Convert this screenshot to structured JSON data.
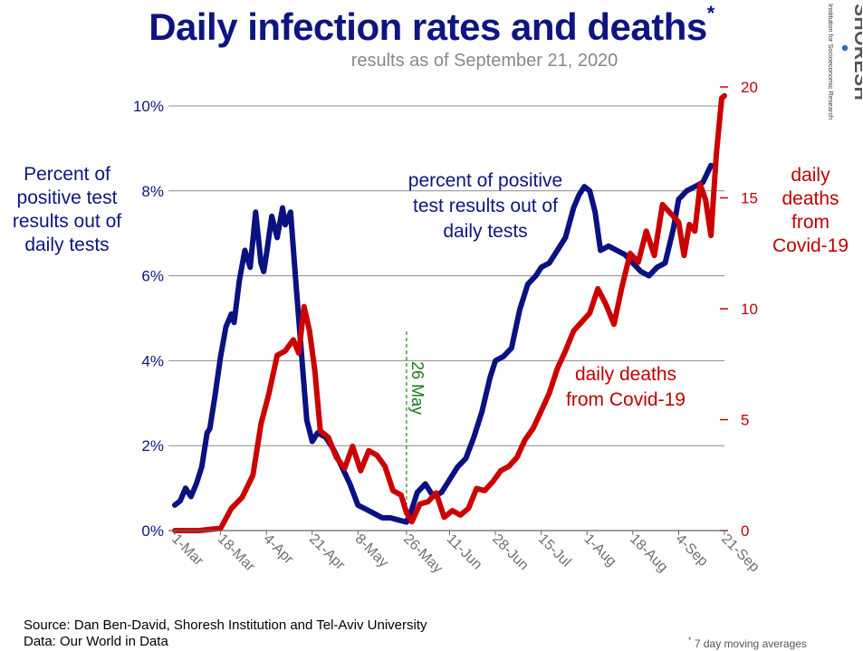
{
  "title": "Daily infection rates and deaths",
  "title_marker": "*",
  "subtitle": "results as of September 21, 2020",
  "left_axis_label": [
    "Percent of",
    "positive test",
    "results out of",
    "daily tests"
  ],
  "right_axis_label": [
    "daily",
    "deaths",
    "from",
    "Covid-19"
  ],
  "annotations": {
    "blue_series": [
      "percent of positive",
      "test results out of",
      "daily tests"
    ],
    "red_series": [
      "daily deaths",
      "from Covid-19"
    ],
    "marker_line": "26 May"
  },
  "logo": {
    "name": "SHORESH",
    "tagline": "Institution for Socioeconomic Research"
  },
  "source": {
    "line1": "Source: Dan Ben-David, Shoresh Institution and Tel-Aviv University",
    "line2": "Data: Our World in Data"
  },
  "footnote": {
    "marker": "*",
    "text": "7 day moving averages"
  },
  "colors": {
    "title": "#0d1580",
    "positivity_series": "#0a1180",
    "deaths_series": "#cc0000",
    "marker_line": "#1a8a1a",
    "gridline": "#8c8c8c"
  },
  "chart_data": {
    "type": "line",
    "x_tick_labels": [
      "1-Mar",
      "18-Mar",
      "4-Apr",
      "21-Apr",
      "8-May",
      "26-May",
      "11-Jun",
      "28-Jun",
      "15-Jul",
      "1-Aug",
      "18-Aug",
      "4-Sep",
      "21-Sep"
    ],
    "x_tick_dates": [
      "2020-03-01",
      "2020-03-18",
      "2020-04-04",
      "2020-04-21",
      "2020-05-08",
      "2020-05-26",
      "2020-06-11",
      "2020-06-28",
      "2020-07-15",
      "2020-08-01",
      "2020-08-18",
      "2020-09-04",
      "2020-09-21"
    ],
    "x_range": [
      "2020-03-01",
      "2020-09-21"
    ],
    "left_axis": {
      "ticks": [
        "0%",
        "2%",
        "4%",
        "6%",
        "8%",
        "10%"
      ],
      "tick_values": [
        0,
        2,
        4,
        6,
        8,
        10
      ],
      "ylim": [
        0,
        10
      ]
    },
    "right_axis": {
      "ticks": [
        "0",
        "5",
        "10",
        "15",
        "20"
      ],
      "tick_values": [
        0,
        5,
        10,
        15,
        20
      ],
      "ylim": [
        0,
        20
      ]
    },
    "grid": true,
    "vertical_marker": {
      "date": "2020-05-26",
      "label": "26 May",
      "style": "dashed"
    },
    "series": [
      {
        "axis": "left",
        "x": [
          "2020-03-01",
          "2020-03-03",
          "2020-03-05",
          "2020-03-07",
          "2020-03-09",
          "2020-03-11",
          "2020-03-13",
          "2020-03-14",
          "2020-03-16",
          "2020-03-18",
          "2020-03-20",
          "2020-03-22",
          "2020-03-23",
          "2020-03-25",
          "2020-03-27",
          "2020-03-29",
          "2020-03-31",
          "2020-04-02",
          "2020-04-03",
          "2020-04-04",
          "2020-04-06",
          "2020-04-08",
          "2020-04-10",
          "2020-04-11",
          "2020-04-13",
          "2020-04-15",
          "2020-04-17",
          "2020-04-19",
          "2020-04-21",
          "2020-04-23",
          "2020-04-26",
          "2020-04-29",
          "2020-05-02",
          "2020-05-05",
          "2020-05-08",
          "2020-05-11",
          "2020-05-14",
          "2020-05-17",
          "2020-05-20",
          "2020-05-23",
          "2020-05-26",
          "2020-05-28",
          "2020-05-30",
          "2020-06-02",
          "2020-06-05",
          "2020-06-08",
          "2020-06-11",
          "2020-06-14",
          "2020-06-17",
          "2020-06-20",
          "2020-06-23",
          "2020-06-26",
          "2020-06-28",
          "2020-07-01",
          "2020-07-04",
          "2020-07-07",
          "2020-07-10",
          "2020-07-13",
          "2020-07-15",
          "2020-07-18",
          "2020-07-21",
          "2020-07-24",
          "2020-07-27",
          "2020-07-29",
          "2020-07-31",
          "2020-08-02",
          "2020-08-04",
          "2020-08-06",
          "2020-08-09",
          "2020-08-12",
          "2020-08-15",
          "2020-08-18",
          "2020-08-21",
          "2020-08-24",
          "2020-08-27",
          "2020-08-30",
          "2020-09-02",
          "2020-09-04",
          "2020-09-07",
          "2020-09-10",
          "2020-09-13",
          "2020-09-16"
        ],
        "y": [
          0.6,
          0.7,
          1.0,
          0.8,
          1.1,
          1.5,
          2.3,
          2.4,
          3.2,
          4.1,
          4.8,
          5.1,
          4.9,
          5.9,
          6.6,
          6.2,
          7.5,
          6.3,
          6.1,
          6.5,
          7.4,
          6.9,
          7.6,
          7.2,
          7.5,
          5.8,
          4.2,
          2.6,
          2.1,
          2.3,
          2.2,
          1.9,
          1.5,
          1.1,
          0.6,
          0.5,
          0.4,
          0.3,
          0.3,
          0.25,
          0.2,
          0.5,
          0.9,
          1.1,
          0.8,
          0.9,
          1.2,
          1.5,
          1.7,
          2.2,
          2.8,
          3.6,
          4.0,
          4.1,
          4.3,
          5.2,
          5.8,
          6.0,
          6.2,
          6.3,
          6.6,
          6.9,
          7.6,
          7.9,
          8.1,
          8.0,
          7.5,
          6.6,
          6.7,
          6.6,
          6.5,
          6.3,
          6.1,
          6.0,
          6.2,
          6.3,
          7.1,
          7.8,
          8.0,
          8.1,
          8.2,
          8.6
        ]
      },
      {
        "axis": "right",
        "x": [
          "2020-03-01",
          "2020-03-10",
          "2020-03-18",
          "2020-03-22",
          "2020-03-26",
          "2020-03-30",
          "2020-04-02",
          "2020-04-05",
          "2020-04-08",
          "2020-04-11",
          "2020-04-14",
          "2020-04-16",
          "2020-04-18",
          "2020-04-20",
          "2020-04-22",
          "2020-04-24",
          "2020-04-27",
          "2020-04-30",
          "2020-05-03",
          "2020-05-06",
          "2020-05-09",
          "2020-05-12",
          "2020-05-15",
          "2020-05-18",
          "2020-05-21",
          "2020-05-24",
          "2020-05-26",
          "2020-05-28",
          "2020-05-31",
          "2020-06-03",
          "2020-06-06",
          "2020-06-09",
          "2020-06-12",
          "2020-06-15",
          "2020-06-18",
          "2020-06-21",
          "2020-06-24",
          "2020-06-27",
          "2020-06-30",
          "2020-07-03",
          "2020-07-06",
          "2020-07-09",
          "2020-07-12",
          "2020-07-15",
          "2020-07-18",
          "2020-07-21",
          "2020-07-24",
          "2020-07-27",
          "2020-07-30",
          "2020-08-02",
          "2020-08-05",
          "2020-08-08",
          "2020-08-11",
          "2020-08-14",
          "2020-08-17",
          "2020-08-20",
          "2020-08-23",
          "2020-08-26",
          "2020-08-29",
          "2020-09-01",
          "2020-09-04",
          "2020-09-06",
          "2020-09-08",
          "2020-09-10",
          "2020-09-12",
          "2020-09-14",
          "2020-09-16",
          "2020-09-18",
          "2020-09-20",
          "2020-09-21"
        ],
        "y": [
          0,
          0,
          0.1,
          1.0,
          1.5,
          2.5,
          4.8,
          6.2,
          7.9,
          8.1,
          8.6,
          8.0,
          10.1,
          9.0,
          7.2,
          4.5,
          4.2,
          3.3,
          2.8,
          3.8,
          2.7,
          3.6,
          3.4,
          2.9,
          1.8,
          1.6,
          0.8,
          0.4,
          1.2,
          1.3,
          1.7,
          0.6,
          0.9,
          0.7,
          1.0,
          1.9,
          1.8,
          2.2,
          2.7,
          2.9,
          3.3,
          4.1,
          4.6,
          5.4,
          6.2,
          7.3,
          8.1,
          9.0,
          9.4,
          9.8,
          10.9,
          10.2,
          9.3,
          11.0,
          12.5,
          12.1,
          13.5,
          12.4,
          14.7,
          14.3,
          13.9,
          12.4,
          13.8,
          13.5,
          15.6,
          14.9,
          13.3,
          17.0,
          19.5,
          19.6
        ]
      }
    ]
  }
}
